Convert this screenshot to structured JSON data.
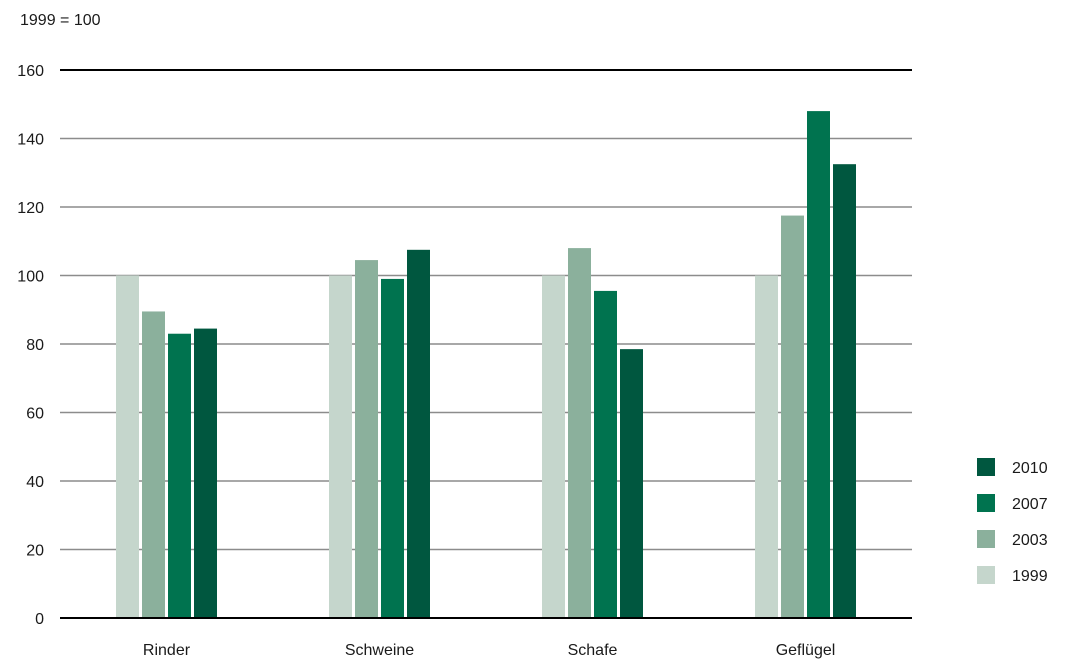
{
  "chart_data": {
    "type": "bar",
    "subtitle": "1999 = 100",
    "categories": [
      "Rinder",
      "Schweine",
      "Schafe",
      "Geflügel"
    ],
    "series": [
      {
        "name": "1999",
        "color": "#c5d6cc",
        "values": [
          100,
          100,
          100,
          100
        ]
      },
      {
        "name": "2003",
        "color": "#8bb09c",
        "values": [
          89.5,
          104.5,
          108,
          117.5
        ]
      },
      {
        "name": "2007",
        "color": "#00734f",
        "values": [
          83,
          99,
          95.5,
          148
        ]
      },
      {
        "name": "2010",
        "color": "#00573f",
        "values": [
          84.5,
          107.5,
          78.5,
          132.5
        ]
      }
    ],
    "ylim": [
      0,
      160
    ],
    "yticks": [
      0,
      20,
      40,
      60,
      80,
      100,
      120,
      140,
      160
    ],
    "grid": true,
    "legend_position": "bottom-right",
    "legend_order": [
      "2010",
      "2007",
      "2003",
      "1999"
    ]
  }
}
